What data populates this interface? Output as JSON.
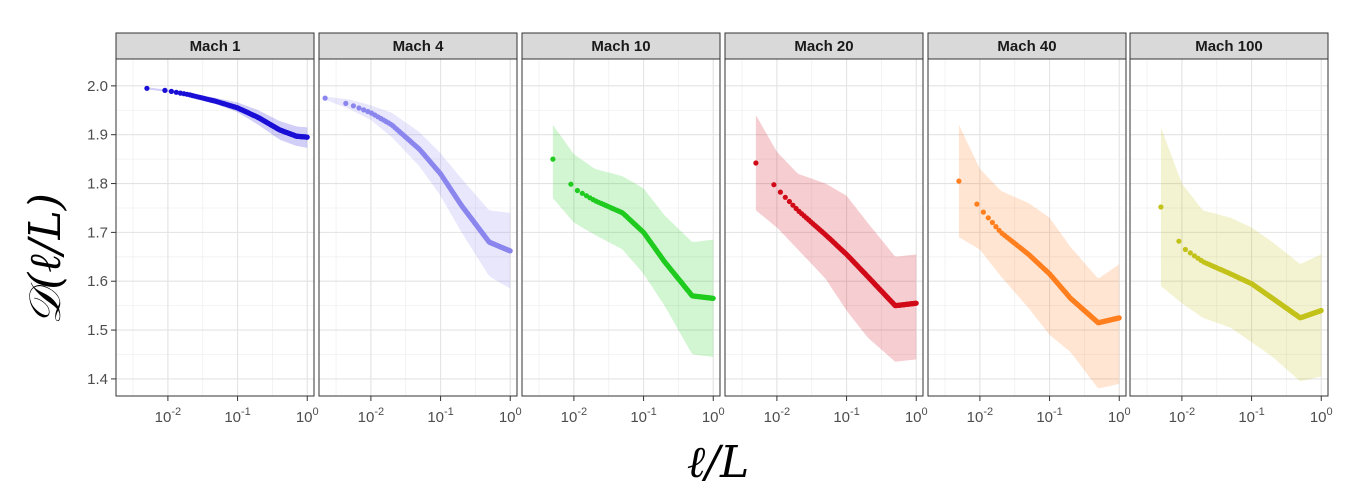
{
  "chart_data": {
    "type": "scatter",
    "layout": "facets",
    "xlabel": "ℓ/L",
    "ylabel": "𝒟(ℓ/L)",
    "x_scale": "log10",
    "xlim": [
      0.0018,
      1.25
    ],
    "ylim": [
      1.365,
      2.055
    ],
    "x_ticks": [
      0.01,
      0.1,
      1
    ],
    "x_tick_labels": [
      {
        "base": "10",
        "exp": "-2"
      },
      {
        "base": "10",
        "exp": "-1"
      },
      {
        "base": "10",
        "exp": "0"
      }
    ],
    "y_ticks": [
      1.4,
      1.5,
      1.6,
      1.7,
      1.8,
      1.9,
      2.0
    ],
    "y_tick_labels": [
      "1.4",
      "1.5",
      "1.6",
      "1.7",
      "1.8",
      "1.9",
      "2.0"
    ],
    "grid": true,
    "legend": "none",
    "facets": [
      {
        "name": "Mach 1",
        "color": "#1a0fd6",
        "band_color": "#1a0fd6",
        "x_start": 0.005,
        "mean": [
          [
            0.005,
            1.995
          ],
          [
            0.01,
            1.99
          ],
          [
            0.02,
            1.982
          ],
          [
            0.05,
            1.968
          ],
          [
            0.1,
            1.955
          ],
          [
            0.2,
            1.935
          ],
          [
            0.4,
            1.91
          ],
          [
            0.7,
            1.897
          ],
          [
            1.0,
            1.895
          ]
        ],
        "upper": [
          [
            0.005,
            1.997
          ],
          [
            0.01,
            1.992
          ],
          [
            0.02,
            1.986
          ],
          [
            0.05,
            1.975
          ],
          [
            0.1,
            1.966
          ],
          [
            0.2,
            1.95
          ],
          [
            0.4,
            1.928
          ],
          [
            0.7,
            1.917
          ],
          [
            1.0,
            1.915
          ]
        ],
        "lower": [
          [
            0.005,
            1.993
          ],
          [
            0.01,
            1.987
          ],
          [
            0.02,
            1.978
          ],
          [
            0.05,
            1.962
          ],
          [
            0.1,
            1.946
          ],
          [
            0.2,
            1.92
          ],
          [
            0.4,
            1.89
          ],
          [
            0.7,
            1.877
          ],
          [
            1.0,
            1.873
          ]
        ]
      },
      {
        "name": "Mach 4",
        "color": "#8a86ee",
        "band_color": "#8a86ee",
        "x_start": 0.0022,
        "mean": [
          [
            0.0022,
            1.975
          ],
          [
            0.005,
            1.962
          ],
          [
            0.01,
            1.945
          ],
          [
            0.02,
            1.92
          ],
          [
            0.05,
            1.87
          ],
          [
            0.1,
            1.82
          ],
          [
            0.2,
            1.755
          ],
          [
            0.5,
            1.68
          ],
          [
            1.0,
            1.662
          ]
        ],
        "upper": [
          [
            0.0022,
            1.978
          ],
          [
            0.005,
            1.972
          ],
          [
            0.01,
            1.96
          ],
          [
            0.02,
            1.945
          ],
          [
            0.05,
            1.905
          ],
          [
            0.1,
            1.862
          ],
          [
            0.2,
            1.81
          ],
          [
            0.5,
            1.745
          ],
          [
            1.0,
            1.74
          ]
        ],
        "lower": [
          [
            0.0022,
            1.972
          ],
          [
            0.005,
            1.952
          ],
          [
            0.01,
            1.93
          ],
          [
            0.02,
            1.895
          ],
          [
            0.05,
            1.835
          ],
          [
            0.1,
            1.775
          ],
          [
            0.2,
            1.7
          ],
          [
            0.5,
            1.61
          ],
          [
            1.0,
            1.585
          ]
        ]
      },
      {
        "name": "Mach 10",
        "color": "#1ecb1e",
        "band_color": "#1ecb1e",
        "x_start": 0.005,
        "mean": [
          [
            0.005,
            1.85
          ],
          [
            0.01,
            1.79
          ],
          [
            0.02,
            1.765
          ],
          [
            0.05,
            1.74
          ],
          [
            0.1,
            1.7
          ],
          [
            0.2,
            1.64
          ],
          [
            0.5,
            1.57
          ],
          [
            1.0,
            1.565
          ]
        ],
        "upper": [
          [
            0.005,
            1.92
          ],
          [
            0.01,
            1.86
          ],
          [
            0.02,
            1.83
          ],
          [
            0.05,
            1.815
          ],
          [
            0.1,
            1.79
          ],
          [
            0.2,
            1.735
          ],
          [
            0.5,
            1.68
          ],
          [
            1.0,
            1.685
          ]
        ],
        "lower": [
          [
            0.005,
            1.77
          ],
          [
            0.01,
            1.72
          ],
          [
            0.02,
            1.695
          ],
          [
            0.05,
            1.665
          ],
          [
            0.1,
            1.615
          ],
          [
            0.2,
            1.55
          ],
          [
            0.5,
            1.45
          ],
          [
            1.0,
            1.445
          ]
        ]
      },
      {
        "name": "Mach 20",
        "color": "#d10a18",
        "band_color": "#d10a18",
        "x_start": 0.005,
        "mean": [
          [
            0.005,
            1.842
          ],
          [
            0.01,
            1.79
          ],
          [
            0.02,
            1.745
          ],
          [
            0.05,
            1.695
          ],
          [
            0.1,
            1.655
          ],
          [
            0.2,
            1.61
          ],
          [
            0.5,
            1.55
          ],
          [
            1.0,
            1.555
          ]
        ],
        "upper": [
          [
            0.005,
            1.94
          ],
          [
            0.01,
            1.865
          ],
          [
            0.02,
            1.82
          ],
          [
            0.05,
            1.8
          ],
          [
            0.1,
            1.775
          ],
          [
            0.2,
            1.72
          ],
          [
            0.5,
            1.65
          ],
          [
            1.0,
            1.655
          ]
        ],
        "lower": [
          [
            0.005,
            1.745
          ],
          [
            0.01,
            1.71
          ],
          [
            0.02,
            1.665
          ],
          [
            0.05,
            1.605
          ],
          [
            0.1,
            1.54
          ],
          [
            0.2,
            1.485
          ],
          [
            0.5,
            1.435
          ],
          [
            1.0,
            1.44
          ]
        ]
      },
      {
        "name": "Mach 40",
        "color": "#ff7f1f",
        "band_color": "#ff7f1f",
        "x_start": 0.005,
        "mean": [
          [
            0.005,
            1.805
          ],
          [
            0.01,
            1.75
          ],
          [
            0.02,
            1.7
          ],
          [
            0.05,
            1.655
          ],
          [
            0.1,
            1.615
          ],
          [
            0.2,
            1.565
          ],
          [
            0.5,
            1.515
          ],
          [
            1.0,
            1.525
          ]
        ],
        "upper": [
          [
            0.005,
            1.92
          ],
          [
            0.01,
            1.83
          ],
          [
            0.02,
            1.785
          ],
          [
            0.05,
            1.76
          ],
          [
            0.1,
            1.73
          ],
          [
            0.2,
            1.67
          ],
          [
            0.5,
            1.605
          ],
          [
            1.0,
            1.635
          ]
        ],
        "lower": [
          [
            0.005,
            1.69
          ],
          [
            0.01,
            1.665
          ],
          [
            0.02,
            1.61
          ],
          [
            0.05,
            1.545
          ],
          [
            0.1,
            1.49
          ],
          [
            0.2,
            1.455
          ],
          [
            0.5,
            1.38
          ],
          [
            1.0,
            1.39
          ]
        ]
      },
      {
        "name": "Mach 100",
        "color": "#c2c21a",
        "band_color": "#c2c21a",
        "x_start": 0.005,
        "mean": [
          [
            0.005,
            1.752
          ],
          [
            0.01,
            1.67
          ],
          [
            0.02,
            1.64
          ],
          [
            0.05,
            1.615
          ],
          [
            0.1,
            1.595
          ],
          [
            0.2,
            1.565
          ],
          [
            0.5,
            1.525
          ],
          [
            1.0,
            1.54
          ]
        ],
        "upper": [
          [
            0.005,
            1.915
          ],
          [
            0.01,
            1.8
          ],
          [
            0.02,
            1.745
          ],
          [
            0.05,
            1.73
          ],
          [
            0.1,
            1.71
          ],
          [
            0.2,
            1.68
          ],
          [
            0.5,
            1.635
          ],
          [
            1.0,
            1.655
          ]
        ],
        "lower": [
          [
            0.005,
            1.59
          ],
          [
            0.01,
            1.555
          ],
          [
            0.02,
            1.525
          ],
          [
            0.05,
            1.505
          ],
          [
            0.1,
            1.475
          ],
          [
            0.2,
            1.445
          ],
          [
            0.5,
            1.395
          ],
          [
            1.0,
            1.405
          ]
        ]
      }
    ]
  }
}
